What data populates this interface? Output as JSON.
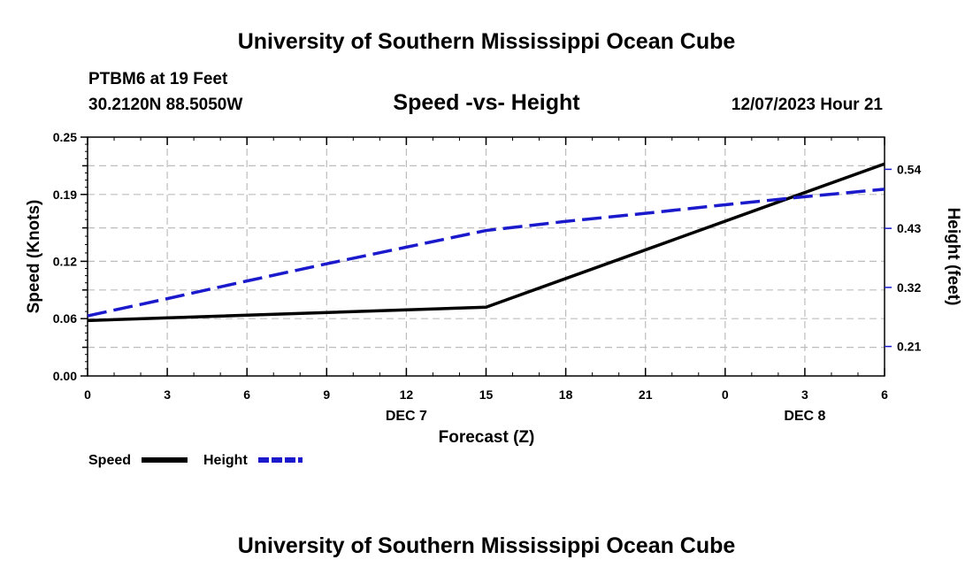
{
  "header": {
    "title": "University of Southern Mississippi Ocean Cube",
    "station": "PTBM6 at 19 Feet",
    "coords": "30.2120N  88.5050W",
    "chart_title": "Speed -vs- Height",
    "datetime": "12/07/2023 Hour 21"
  },
  "footer": {
    "title": "University of Southern Mississippi Ocean Cube"
  },
  "colors": {
    "speed": "#000000",
    "height": "#1a1acc",
    "grid": "#bdbdbd"
  },
  "chart_data": {
    "type": "line",
    "title": "Speed -vs- Height",
    "xlabel": "Forecast (Z)",
    "ylabel": "Speed (Knots)",
    "y2label": "Height (feet)",
    "x_tick_labels": [
      "0",
      "3",
      "6",
      "9",
      "12",
      "15",
      "18",
      "21",
      "0",
      "3",
      "6"
    ],
    "x_date_labels": [
      {
        "label": "DEC 7",
        "tick_index": 4
      },
      {
        "label": "DEC 8",
        "tick_index": 9
      }
    ],
    "xlim": [
      0,
      30
    ],
    "ylim": [
      0,
      0.25
    ],
    "y_ticks": [
      0.0,
      0.06,
      0.12,
      0.19,
      0.25
    ],
    "y_tick_labels": [
      "0.00",
      "0.06",
      "0.12",
      "0.19",
      "0.25"
    ],
    "y2lim": [
      0.155,
      0.6
    ],
    "y2_ticks": [
      0.21,
      0.32,
      0.43,
      0.54
    ],
    "y2_tick_labels": [
      "0.21",
      "0.32",
      "0.43",
      "0.54"
    ],
    "grid": true,
    "series": [
      {
        "name": "Speed",
        "axis": "left",
        "style": "solid",
        "x": [
          0,
          15,
          30
        ],
        "values": [
          0.058,
          0.072,
          0.222
        ]
      },
      {
        "name": "Height",
        "axis": "right",
        "style": "dashed",
        "x": [
          0,
          3,
          6,
          9,
          12,
          15,
          18,
          21,
          24,
          27,
          30
        ],
        "values": [
          0.267,
          0.299,
          0.332,
          0.364,
          0.395,
          0.426,
          0.443,
          0.458,
          0.474,
          0.489,
          0.503
        ]
      }
    ],
    "legend": [
      {
        "label": "Speed",
        "style": "solid"
      },
      {
        "label": "Height",
        "style": "dashed"
      }
    ],
    "legend_position": "bottom-left"
  }
}
